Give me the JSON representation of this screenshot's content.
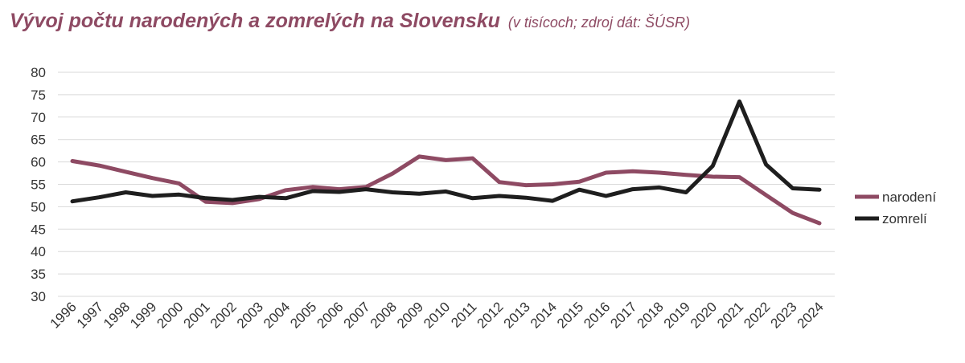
{
  "header": {
    "title": "Vývoj počtu narodených a zomrelých na Slovensku",
    "subtitle": "(v tisícoch;  zdroj dát: ŠÚSR)"
  },
  "chart_data": {
    "type": "line",
    "title": "Vývoj počtu narodených a zomrelých na Slovensku",
    "subtitle": "(v tisícoch;  zdroj dát: ŠÚSR)",
    "x": [
      "1996",
      "1997",
      "1998",
      "1999",
      "2000",
      "2001",
      "2002",
      "2003",
      "2004",
      "2005",
      "2006",
      "2007",
      "2008",
      "2009",
      "2010",
      "2011",
      "2012",
      "2013",
      "2014",
      "2015",
      "2016",
      "2017",
      "2018",
      "2019",
      "2020",
      "2021",
      "2022",
      "2023",
      "2024"
    ],
    "ylim": [
      30,
      80
    ],
    "yticks": [
      30,
      35,
      40,
      45,
      50,
      55,
      60,
      65,
      70,
      75,
      80
    ],
    "grid": "horizontal",
    "legend_position": "right",
    "series": [
      {
        "name": "narodení",
        "color": "#8e4a63",
        "values": [
          60.2,
          59.2,
          57.8,
          56.4,
          55.2,
          51.1,
          50.8,
          51.7,
          53.7,
          54.4,
          53.9,
          54.4,
          57.4,
          61.2,
          60.4,
          60.8,
          55.5,
          54.8,
          55.0,
          55.6,
          57.6,
          57.9,
          57.6,
          57.1,
          56.7,
          56.6,
          52.6,
          48.6,
          46.3
        ]
      },
      {
        "name": "zomrelí",
        "color": "#1e1e1e",
        "values": [
          51.2,
          52.1,
          53.2,
          52.4,
          52.7,
          51.9,
          51.5,
          52.2,
          51.9,
          53.5,
          53.3,
          53.9,
          53.2,
          52.9,
          53.4,
          51.9,
          52.4,
          52.0,
          51.3,
          53.8,
          52.4,
          53.9,
          54.3,
          53.2,
          59.1,
          73.5,
          59.4,
          54.1,
          53.8
        ]
      }
    ]
  }
}
